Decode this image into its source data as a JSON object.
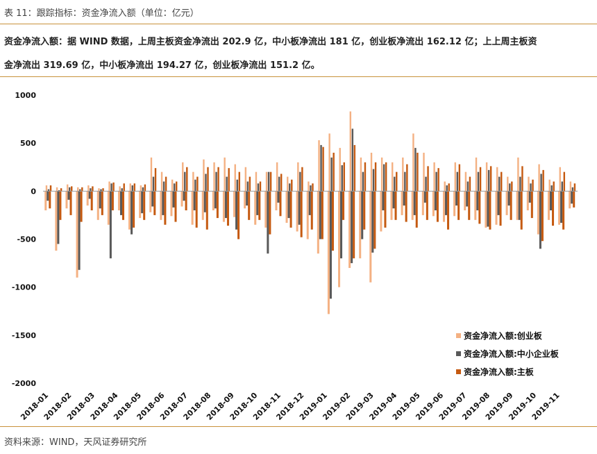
{
  "header": {
    "title": "表 11：跟踪指标：资金净流入额（单位：亿元）",
    "summary_line1": "资金净流入额：据 WIND 数据，上周主板资金净流出 202.9 亿，中小板净流出 181 亿，创业板净流出 162.12 亿；上上周主板资",
    "summary_line2": "金净流出 319.69 亿，中小板净流出 194.27 亿，创业板净流出 151.2 亿。"
  },
  "footer": {
    "source": "资料来源：WIND，天风证券研究所"
  },
  "colors": {
    "chuangye": "#f4b183",
    "zhongxiao": "#595959",
    "main": "#c55a11",
    "rule": "#c8913a"
  },
  "chart_data": {
    "type": "bar",
    "stacked": false,
    "ylim": [
      -2000,
      1000
    ],
    "yticks": [
      1000,
      500,
      0,
      -500,
      -1000,
      -1500,
      -2000
    ],
    "x_ticks": [
      "2018-01",
      "2018-02",
      "2018-03",
      "2018-04",
      "2018-05",
      "2018-06",
      "2018-07",
      "2018-08",
      "2018-09",
      "2018-10",
      "2018-11",
      "2018-12",
      "2019-01",
      "2019-02",
      "2019-03",
      "2019-04",
      "2019-05",
      "2019-06",
      "2019-07",
      "2019-08",
      "2019-09",
      "2019-10",
      "2019-11"
    ],
    "legend_position": "bottom-right",
    "grid": false,
    "series": [
      {
        "name": "资金净流入额:创业板",
        "color": "#f4b183",
        "values": [
          -200,
          -620,
          -180,
          -900,
          -150,
          -300,
          -350,
          -200,
          -400,
          -280,
          -220,
          -300,
          -260,
          -160,
          -350,
          -300,
          -200,
          -320,
          -270,
          -180,
          -350,
          -380,
          -200,
          -330,
          -420,
          -500,
          -650,
          -1280,
          -1000,
          -800,
          -700,
          -950,
          -420,
          -300,
          -250,
          -300,
          -250,
          -260,
          -320,
          -260,
          -200,
          -300,
          -380,
          -350,
          -250,
          -300,
          -200,
          -450,
          -300,
          -350,
          -180
        ],
        "pos": [
          60,
          40,
          70,
          40,
          60,
          30,
          100,
          50,
          80,
          60,
          350,
          200,
          120,
          300,
          200,
          330,
          300,
          350,
          280,
          250,
          200,
          200,
          300,
          150,
          300,
          100,
          530,
          600,
          450,
          830,
          350,
          400,
          350,
          300,
          350,
          600,
          400,
          300,
          100,
          300,
          200,
          350,
          300,
          250,
          150,
          350,
          150,
          280,
          120,
          250,
          100
        ]
      },
      {
        "name": "资金净流入额:中小企业板",
        "color": "#595959",
        "values": [
          -100,
          -550,
          -90,
          -820,
          -80,
          -180,
          -700,
          -250,
          -450,
          -230,
          -160,
          -250,
          -170,
          -100,
          -200,
          -220,
          -180,
          -280,
          -400,
          -150,
          -250,
          -650,
          -120,
          -280,
          -350,
          -250,
          -500,
          -1120,
          -700,
          -750,
          -500,
          -640,
          -200,
          -180,
          -150,
          -250,
          -120,
          -200,
          -250,
          -150,
          -160,
          -200,
          -370,
          -250,
          -150,
          -300,
          -120,
          -600,
          -200,
          -330,
          -130
        ],
        "pos": [
          20,
          10,
          40,
          20,
          30,
          20,
          80,
          30,
          60,
          40,
          150,
          100,
          80,
          200,
          120,
          180,
          200,
          150,
          120,
          100,
          80,
          200,
          150,
          80,
          200,
          60,
          480,
          350,
          270,
          650,
          200,
          230,
          280,
          150,
          200,
          450,
          150,
          200,
          60,
          200,
          100,
          200,
          220,
          150,
          80,
          150,
          80,
          180,
          60,
          100,
          40
        ]
      },
      {
        "name": "资金净流入额:主板",
        "color": "#c55a11",
        "values": [
          -180,
          -300,
          -250,
          -320,
          -200,
          -250,
          -200,
          -300,
          -380,
          -300,
          -250,
          -350,
          -320,
          -200,
          -380,
          -400,
          -280,
          -360,
          -500,
          -300,
          -300,
          -450,
          -260,
          -380,
          -480,
          -400,
          -500,
          -620,
          -300,
          -700,
          -400,
          -600,
          -380,
          -300,
          -320,
          -380,
          -300,
          -320,
          -400,
          -300,
          -300,
          -340,
          -400,
          -360,
          -300,
          -400,
          -280,
          -520,
          -360,
          -400,
          -170
        ],
        "pos": [
          60,
          30,
          50,
          40,
          50,
          30,
          90,
          80,
          80,
          70,
          240,
          150,
          100,
          250,
          150,
          250,
          250,
          240,
          200,
          150,
          100,
          200,
          180,
          120,
          250,
          80,
          460,
          400,
          300,
          480,
          300,
          300,
          300,
          200,
          280,
          400,
          260,
          240,
          80,
          280,
          150,
          250,
          260,
          200,
          100,
          260,
          120,
          220,
          100,
          200,
          80
        ]
      }
    ]
  }
}
